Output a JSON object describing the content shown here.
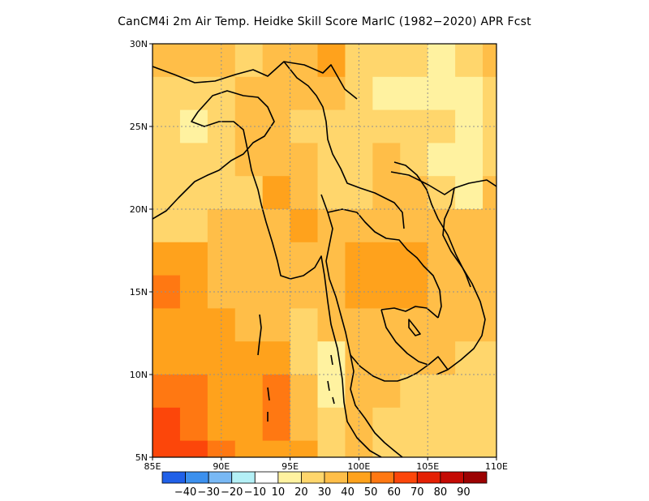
{
  "title": "CanCM4i  2m Air Temp. Heidke Skill Score MarIC (1982−2020) APR Fcst",
  "map": {
    "projection": "lat-lon",
    "lon_range": [
      85,
      110
    ],
    "lat_range": [
      5,
      30
    ],
    "grid": "dotted",
    "lon_ticks": [
      {
        "value": 85,
        "label": "85E"
      },
      {
        "value": 90,
        "label": "90E"
      },
      {
        "value": 95,
        "label": "95E"
      },
      {
        "value": 100,
        "label": "100E"
      },
      {
        "value": 105,
        "label": "105E"
      },
      {
        "value": 110,
        "label": "110E"
      }
    ],
    "lat_ticks": [
      {
        "value": 5,
        "label": "5N"
      },
      {
        "value": 10,
        "label": "10N"
      },
      {
        "value": 15,
        "label": "15N"
      },
      {
        "value": 20,
        "label": "20N"
      },
      {
        "value": 25,
        "label": "25N"
      },
      {
        "value": 30,
        "label": "30N"
      }
    ]
  },
  "colorbar": {
    "colors": [
      "#2060e8",
      "#3c90ee",
      "#78b8f4",
      "#b4f0f6",
      "#ffffff",
      "#fff2a0",
      "#ffd66c",
      "#ffbe48",
      "#ffa21c",
      "#ff7812",
      "#fc460a",
      "#e42004",
      "#c40a04",
      "#9c0202"
    ],
    "labels": [
      "−40",
      "−30",
      "−20",
      "−10",
      "10",
      "20",
      "30",
      "40",
      "50",
      "60",
      "70",
      "80",
      "90"
    ]
  },
  "chart_data": {
    "type": "heatmap",
    "title": "CanCM4i  2m Air Temp. Heidke Skill Score MarIC (1982−2020) APR Fcst",
    "x": [
      86,
      88,
      90,
      92,
      94,
      96,
      98,
      100,
      102,
      104,
      106,
      108,
      110
    ],
    "y": [
      29,
      27,
      25,
      23,
      21,
      19,
      17,
      15,
      13,
      11,
      9,
      7,
      5
    ],
    "z": [
      [
        30,
        30,
        30,
        20,
        35,
        30,
        40,
        20,
        25,
        20,
        10,
        20,
        30
      ],
      [
        20,
        25,
        20,
        30,
        30,
        35,
        30,
        20,
        10,
        10,
        10,
        10,
        20
      ],
      [
        20,
        15,
        20,
        30,
        30,
        25,
        20,
        20,
        20,
        20,
        20,
        10,
        20
      ],
      [
        20,
        20,
        20,
        30,
        30,
        30,
        20,
        20,
        30,
        20,
        10,
        10,
        20
      ],
      [
        20,
        20,
        20,
        25,
        40,
        35,
        20,
        20,
        30,
        30,
        20,
        10,
        30
      ],
      [
        20,
        25,
        30,
        30,
        35,
        40,
        30,
        30,
        30,
        30,
        30,
        30,
        30
      ],
      [
        40,
        40,
        35,
        30,
        30,
        30,
        30,
        40,
        40,
        40,
        30,
        30,
        30
      ],
      [
        50,
        40,
        30,
        30,
        30,
        30,
        30,
        40,
        40,
        40,
        30,
        30,
        30
      ],
      [
        40,
        40,
        40,
        30,
        30,
        20,
        30,
        30,
        30,
        30,
        30,
        30,
        30
      ],
      [
        40,
        40,
        40,
        40,
        40,
        20,
        10,
        30,
        30,
        30,
        30,
        20,
        20
      ],
      [
        50,
        50,
        40,
        40,
        50,
        30,
        10,
        30,
        30,
        20,
        20,
        20,
        20
      ],
      [
        60,
        50,
        40,
        40,
        50,
        30,
        20,
        30,
        20,
        20,
        20,
        20,
        20
      ],
      [
        60,
        60,
        50,
        40,
        40,
        40,
        20,
        30,
        20,
        20,
        20,
        20,
        20
      ]
    ],
    "levels": [
      -40,
      -30,
      -20,
      -10,
      10,
      20,
      30,
      40,
      50,
      60,
      70,
      80,
      90
    ],
    "xlabel": "",
    "ylabel": "",
    "xlim": [
      85,
      110
    ],
    "ylim": [
      5,
      30
    ],
    "grid": true,
    "legend": "bottom colorbar"
  }
}
